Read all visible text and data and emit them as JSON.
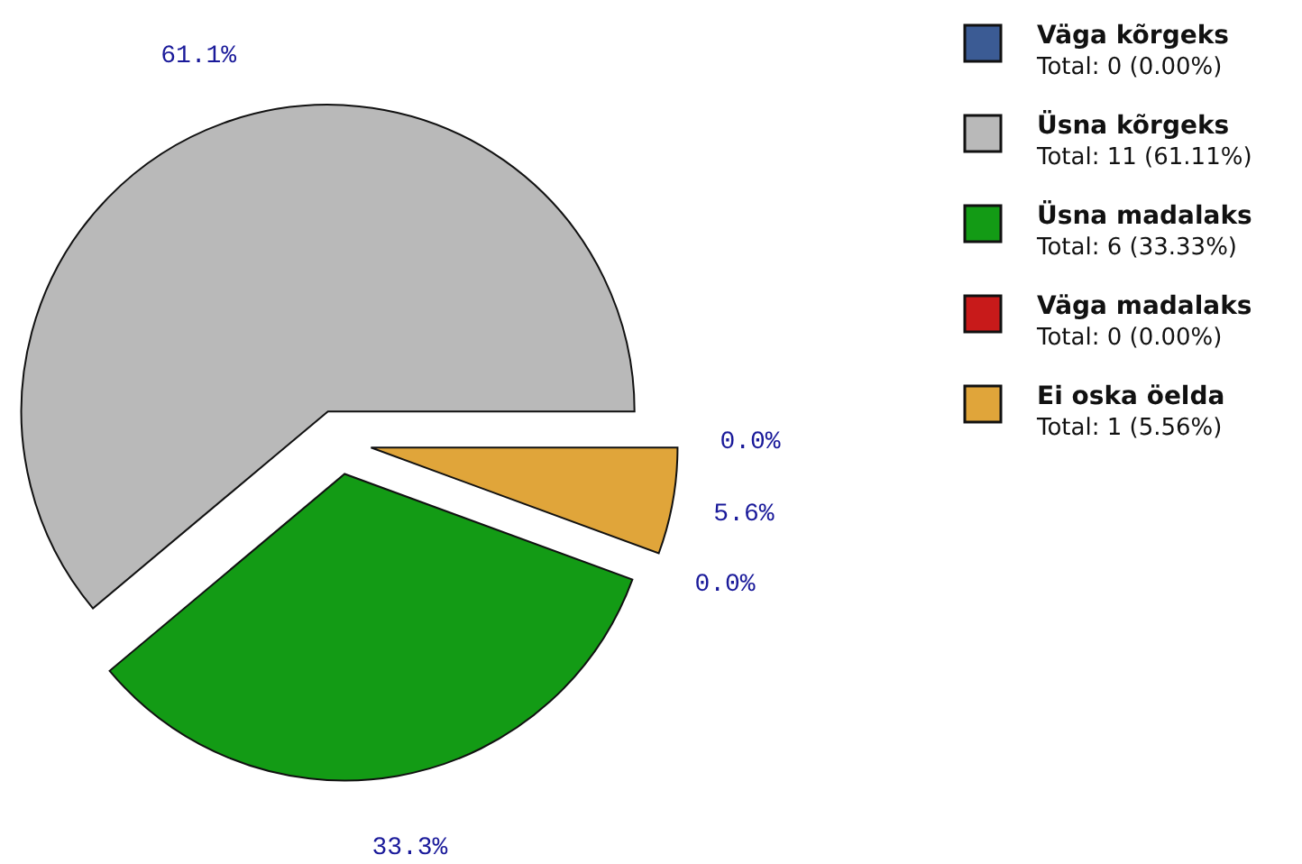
{
  "chart_data": {
    "type": "pie",
    "categories": [
      "Väga kõrgeks",
      "Üsna kõrgeks",
      "Üsna madalaks",
      "Väga madalaks",
      "Ei oska öelda"
    ],
    "values": [
      0,
      61.1,
      33.3,
      0,
      5.6
    ],
    "colors": [
      "#3b5b94",
      "#b9b9b9",
      "#139b15",
      "#c81a1a",
      "#e0a53a"
    ],
    "value_labels": [
      "0.0%",
      "61.1%",
      "33.3%",
      "0.0%",
      "5.6%"
    ],
    "annotations": [
      "Total: 0 (0.00%)",
      "Total: 11 (61.11%)",
      "Total: 6 (33.33%)",
      "Total: 0 (0.00%)",
      "Total: 1 (5.56%)"
    ],
    "legend": "right"
  }
}
